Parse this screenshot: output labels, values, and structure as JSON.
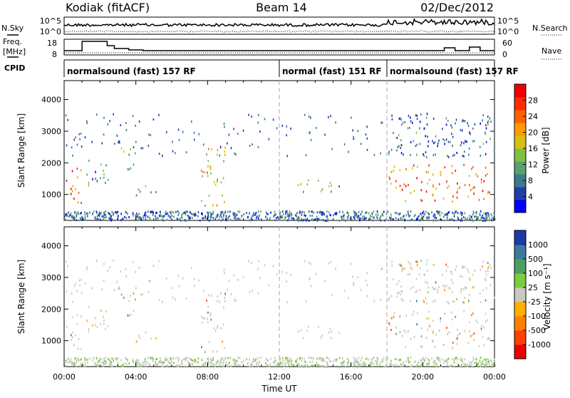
{
  "header": {
    "station": "Kodiak (fitACF)",
    "beam": "Beam 14",
    "date": "02/Dec/2012"
  },
  "left_labels": {
    "nsky": "N.Sky",
    "freq_line1": "Freq.",
    "freq_line2": "[MHz]",
    "cpid": "CPID"
  },
  "right_labels": {
    "nsearch": "N.Search",
    "nave": "Nave"
  },
  "noise_axis": {
    "top": "10^5",
    "bottom": "10^0"
  },
  "freq_axis": {
    "top": "18",
    "bottom": "8"
  },
  "nave_axis": {
    "top": "60",
    "bottom": "0"
  },
  "cpid_segments": [
    {
      "label": "normalsound (fast) 157 RF",
      "start_hour": 0,
      "end_hour": 12
    },
    {
      "label": "normal (fast) 151 RF",
      "start_hour": 12,
      "end_hour": 18
    },
    {
      "label": "normalsound (fast) 157 RF",
      "start_hour": 18,
      "end_hour": 24
    }
  ],
  "y_axis": {
    "label": "Slant Range [km]",
    "ticks": [
      "1000",
      "2000",
      "3000",
      "4000"
    ],
    "tick_values": [
      1000,
      2000,
      3000,
      4000
    ]
  },
  "x_axis": {
    "label": "Time UT",
    "ticks": [
      "00:00",
      "04:00",
      "08:00",
      "12:00",
      "16:00",
      "20:00",
      "00:00"
    ],
    "tick_hours": [
      0,
      4,
      8,
      12,
      16,
      20,
      24
    ]
  },
  "power_colorbar": {
    "label": "Power [dB]",
    "ticks": [
      "4",
      "8",
      "12",
      "16",
      "20",
      "24",
      "28"
    ],
    "colors": [
      "#0000ff",
      "#1e3fa8",
      "#3c7a8e",
      "#5aa070",
      "#7fc040",
      "#d8c010",
      "#ff9a00",
      "#ff6000",
      "#ff2a00",
      "#ee0000"
    ]
  },
  "velocity_colorbar": {
    "label": "Velocity [m s⁻¹]",
    "ticks": [
      "1000",
      "500",
      "100",
      "25",
      "-25",
      "-100",
      "-500",
      "-1000"
    ],
    "colors": [
      "#1a3aa8",
      "#3a7aa0",
      "#4aa060",
      "#7ccc40",
      "#c8c8c0",
      "#ffb000",
      "#ff8000",
      "#ff4000",
      "#ee0000"
    ]
  },
  "chart_data": {
    "type": "heatmap",
    "title": "Kodiak (fitACF) Beam 14 02/Dec/2012",
    "xlabel": "Time UT",
    "ylabel": "Slant Range [km]",
    "xlim_hours": [
      0,
      24
    ],
    "ylim_km": [
      180,
      4600
    ],
    "panels": [
      "Power [dB]",
      "Velocity [m s⁻¹]"
    ],
    "power_range_db": [
      0,
      30
    ],
    "velocity_range_ms": [
      -1000,
      1000
    ],
    "scatter_regions": [
      {
        "t_start": 0.0,
        "t_end": 1.0,
        "r_min": 700,
        "r_max": 1900,
        "typical_power_db": 24
      },
      {
        "t_start": 1.0,
        "t_end": 2.5,
        "r_min": 1300,
        "r_max": 2200,
        "typical_power_db": 8
      },
      {
        "t_start": 3.0,
        "t_end": 4.0,
        "r_min": 1800,
        "r_max": 2800,
        "typical_power_db": 10
      },
      {
        "t_start": 4.0,
        "t_end": 5.2,
        "r_min": 1000,
        "r_max": 1400,
        "typical_power_db": 14
      },
      {
        "t_start": 7.6,
        "t_end": 9.0,
        "r_min": 600,
        "r_max": 2600,
        "typical_power_db": 18
      },
      {
        "t_start": 13.0,
        "t_end": 15.8,
        "r_min": 1100,
        "r_max": 1500,
        "typical_power_db": 12
      },
      {
        "t_start": 18.0,
        "t_end": 23.8,
        "r_min": 800,
        "r_max": 2000,
        "typical_power_db": 22
      },
      {
        "t_start": 18.0,
        "t_end": 23.8,
        "r_min": 2200,
        "r_max": 3600,
        "typical_power_db": 6
      }
    ]
  }
}
